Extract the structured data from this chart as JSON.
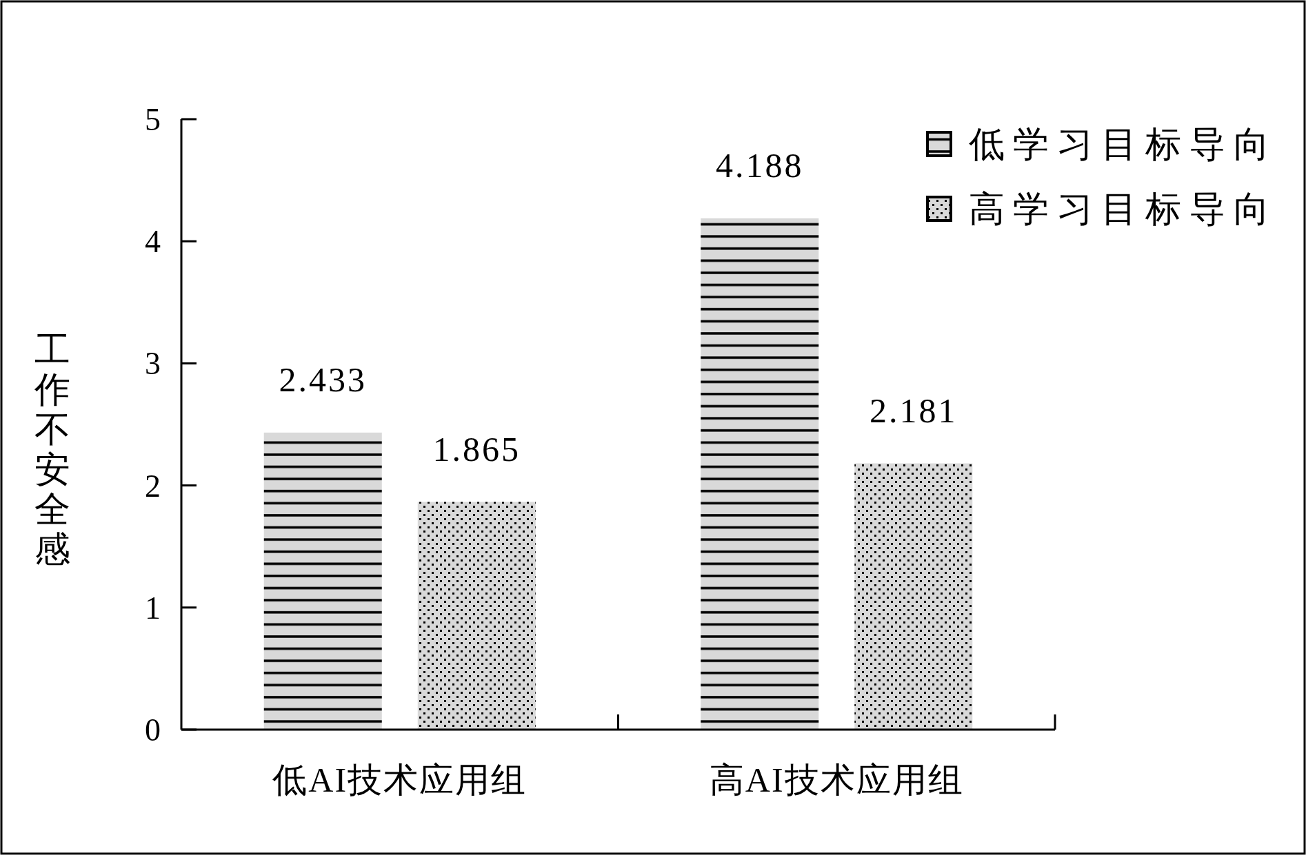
{
  "chart_data": {
    "type": "bar",
    "ylabel": "工作不安全感",
    "categories": [
      "低AI技术应用组",
      "高AI技术应用组"
    ],
    "series": [
      {
        "name": "低学习目标导向",
        "color": "#d9d9d9",
        "values": [
          2.433,
          4.188
        ]
      },
      {
        "name": "高学习目标导向",
        "color": "#d9d9d9",
        "values": [
          1.865,
          2.181
        ]
      }
    ],
    "ylim": [
      0,
      5
    ],
    "yticks": [
      0,
      1,
      2,
      3,
      4,
      5
    ],
    "data_labels": true,
    "legend": "top right",
    "grid": false
  }
}
